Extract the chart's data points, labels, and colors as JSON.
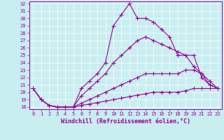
{
  "xlabel": "Windchill (Refroidissement éolien,°C)",
  "bg_color": "#c8eef0",
  "line_color": "#990099",
  "xlim": [
    -0.5,
    23.5
  ],
  "ylim": [
    17.7,
    32.3
  ],
  "yticks": [
    18,
    19,
    20,
    21,
    22,
    23,
    24,
    25,
    26,
    27,
    28,
    29,
    30,
    31,
    32
  ],
  "xticks": [
    0,
    1,
    2,
    3,
    4,
    5,
    6,
    7,
    8,
    9,
    10,
    11,
    12,
    13,
    14,
    15,
    16,
    17,
    18,
    19,
    20,
    21,
    22,
    23
  ],
  "lines": [
    {
      "x": [
        0,
        1,
        2,
        3,
        4,
        5,
        6,
        7,
        8,
        9,
        10,
        11,
        12,
        13,
        14,
        15,
        16,
        17,
        18,
        19,
        20,
        21,
        22,
        23
      ],
      "y": [
        20.5,
        19.0,
        18.2,
        18.0,
        18.0,
        18.0,
        20.5,
        21.5,
        22.5,
        24.0,
        29.0,
        30.5,
        32.0,
        30.0,
        30.0,
        29.5,
        28.5,
        27.5,
        25.0,
        25.0,
        25.0,
        22.0,
        21.0,
        20.5
      ]
    },
    {
      "x": [
        0,
        1,
        2,
        3,
        4,
        5,
        6,
        7,
        8,
        9,
        10,
        11,
        12,
        13,
        14,
        15,
        16,
        17,
        18,
        19,
        20,
        21,
        22,
        23
      ],
      "y": [
        20.5,
        19.0,
        18.2,
        18.0,
        18.0,
        18.0,
        19.5,
        20.5,
        21.5,
        22.5,
        24.0,
        25.0,
        26.0,
        27.0,
        27.5,
        27.0,
        26.5,
        26.0,
        25.5,
        25.0,
        23.5,
        22.5,
        21.0,
        20.5
      ]
    },
    {
      "x": [
        0,
        1,
        2,
        3,
        4,
        5,
        6,
        7,
        8,
        9,
        10,
        11,
        12,
        13,
        14,
        15,
        16,
        17,
        18,
        19,
        20,
        21,
        22,
        23
      ],
      "y": [
        20.5,
        19.0,
        18.2,
        18.0,
        18.0,
        18.0,
        18.5,
        19.0,
        19.5,
        20.0,
        20.5,
        21.0,
        21.5,
        22.0,
        22.5,
        22.5,
        22.5,
        22.5,
        22.5,
        23.0,
        23.0,
        22.5,
        21.5,
        20.5
      ]
    },
    {
      "x": [
        0,
        1,
        2,
        3,
        4,
        5,
        6,
        7,
        8,
        9,
        10,
        11,
        12,
        13,
        14,
        15,
        16,
        17,
        18,
        19,
        20,
        21,
        22,
        23
      ],
      "y": [
        20.5,
        19.0,
        18.2,
        18.0,
        18.0,
        18.0,
        18.2,
        18.4,
        18.6,
        18.8,
        19.0,
        19.2,
        19.4,
        19.6,
        19.8,
        20.0,
        20.0,
        20.0,
        20.0,
        20.2,
        20.5,
        20.5,
        20.5,
        20.5
      ]
    }
  ],
  "marker": "+",
  "markersize": 4,
  "linewidth": 0.8,
  "grid_color": "#ffffff",
  "tick_fontsize": 5,
  "label_fontsize": 6,
  "grid_linewidth": 0.5
}
